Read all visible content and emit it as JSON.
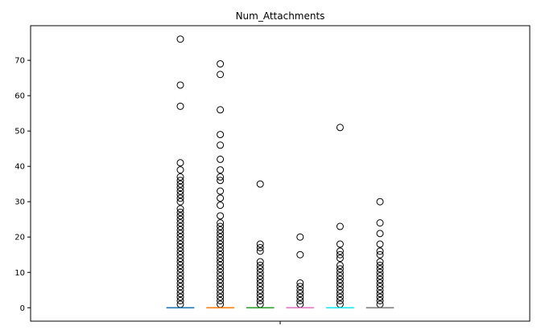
{
  "chart_data": {
    "type": "box",
    "title": "Num_Attachments",
    "xlabel": "",
    "ylabel": "",
    "ylim": [
      -3.8,
      79.8
    ],
    "yticks": [
      0,
      10,
      20,
      30,
      40,
      50,
      60,
      70
    ],
    "grid": false,
    "legend": "none",
    "series": [
      {
        "color": "#1f77b4",
        "median": 0,
        "q1": 0,
        "q3": 0,
        "whisker_low": 0,
        "whisker_high": 0,
        "outliers": [
          76,
          63,
          57,
          41,
          39,
          37,
          36,
          35,
          34,
          33,
          32,
          31,
          30,
          28,
          27,
          26,
          25,
          24,
          23,
          22,
          21,
          20,
          19,
          18,
          17,
          16,
          15,
          14,
          13,
          12,
          11,
          10,
          9,
          8,
          7,
          6,
          5,
          4,
          3,
          2,
          1
        ]
      },
      {
        "color": "#ff7f0e",
        "median": 0,
        "q1": 0,
        "q3": 0,
        "whisker_low": 0,
        "whisker_high": 0,
        "outliers": [
          69,
          66,
          56,
          49,
          46,
          42,
          39,
          37,
          36,
          33,
          31,
          29,
          26,
          24,
          23,
          22,
          21,
          20,
          19,
          18,
          17,
          16,
          15,
          14,
          13,
          12,
          11,
          10,
          9,
          8,
          7,
          6,
          5,
          4,
          3,
          2,
          1
        ]
      },
      {
        "color": "#2ca02c",
        "median": 0,
        "q1": 0,
        "q3": 0,
        "whisker_low": 0,
        "whisker_high": 0,
        "outliers": [
          35,
          18,
          17,
          16,
          13,
          12,
          11,
          10,
          9,
          8,
          7,
          6,
          5,
          4,
          3,
          2,
          1
        ]
      },
      {
        "color": "#e377c2",
        "median": 0,
        "q1": 0,
        "q3": 0,
        "whisker_low": 0,
        "whisker_high": 0,
        "outliers": [
          20,
          15,
          7,
          6,
          5,
          4,
          3,
          2,
          1
        ]
      },
      {
        "color": "#17e8f0",
        "median": 0,
        "q1": 0,
        "q3": 0,
        "whisker_low": 0,
        "whisker_high": 0,
        "outliers": [
          51,
          23,
          18,
          16,
          15,
          14,
          12,
          11,
          10,
          9,
          8,
          7,
          6,
          5,
          4,
          3,
          2,
          1
        ]
      },
      {
        "color": "#7f7f7f",
        "median": 0,
        "q1": 0,
        "q3": 0,
        "whisker_low": 0,
        "whisker_high": 0,
        "outliers": [
          30,
          24,
          21,
          18,
          16,
          15,
          13,
          12,
          11,
          10,
          9,
          8,
          7,
          6,
          5,
          4,
          3,
          2,
          1
        ]
      }
    ]
  }
}
